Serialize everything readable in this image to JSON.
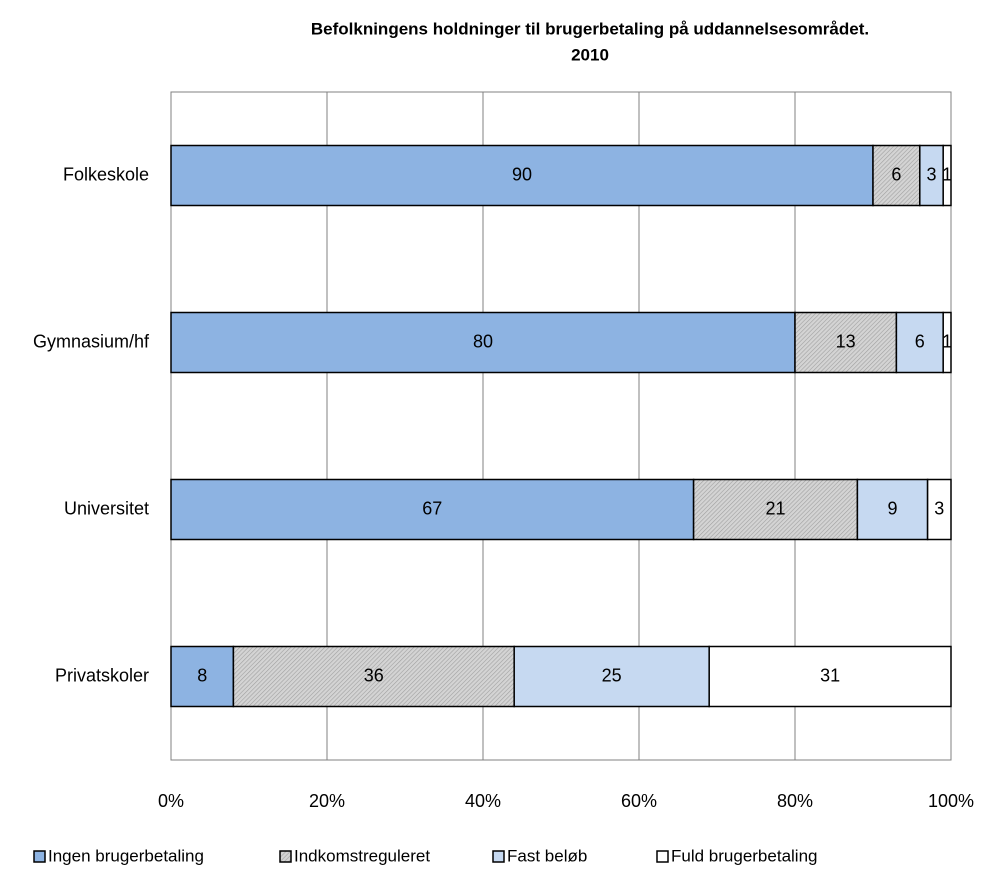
{
  "chart_data": {
    "type": "stacked-barh",
    "title": [
      "Befolkningens holdninger til brugerbetaling på uddannelsesområdet.",
      "2010"
    ],
    "categories": [
      "Folkeskole",
      "Gymnasium/hf",
      "Universitet",
      "Privatskoler"
    ],
    "series": [
      {
        "name": "Ingen brugerbetaling",
        "color": "#8db3e2",
        "values": [
          90,
          80,
          67,
          8
        ]
      },
      {
        "name": "Indkomstreguleret",
        "color": "#c0c0c0",
        "pattern": "hatch",
        "values": [
          6,
          13,
          21,
          36
        ]
      },
      {
        "name": "Fast beløb",
        "color": "#c6d9f1",
        "values": [
          3,
          6,
          9,
          25
        ]
      },
      {
        "name": "Fuld brugerbetaling",
        "color": "#ffffff",
        "values": [
          1,
          1,
          3,
          31
        ]
      }
    ],
    "xlim": [
      0,
      100
    ],
    "xticks": [
      {
        "value": 0,
        "label": "0%"
      },
      {
        "value": 20,
        "label": "20%"
      },
      {
        "value": 40,
        "label": "40%"
      },
      {
        "value": 60,
        "label": "60%"
      },
      {
        "value": 80,
        "label": "80%"
      },
      {
        "value": 100,
        "label": "100%"
      }
    ],
    "grid": true,
    "legend": "bottom"
  }
}
